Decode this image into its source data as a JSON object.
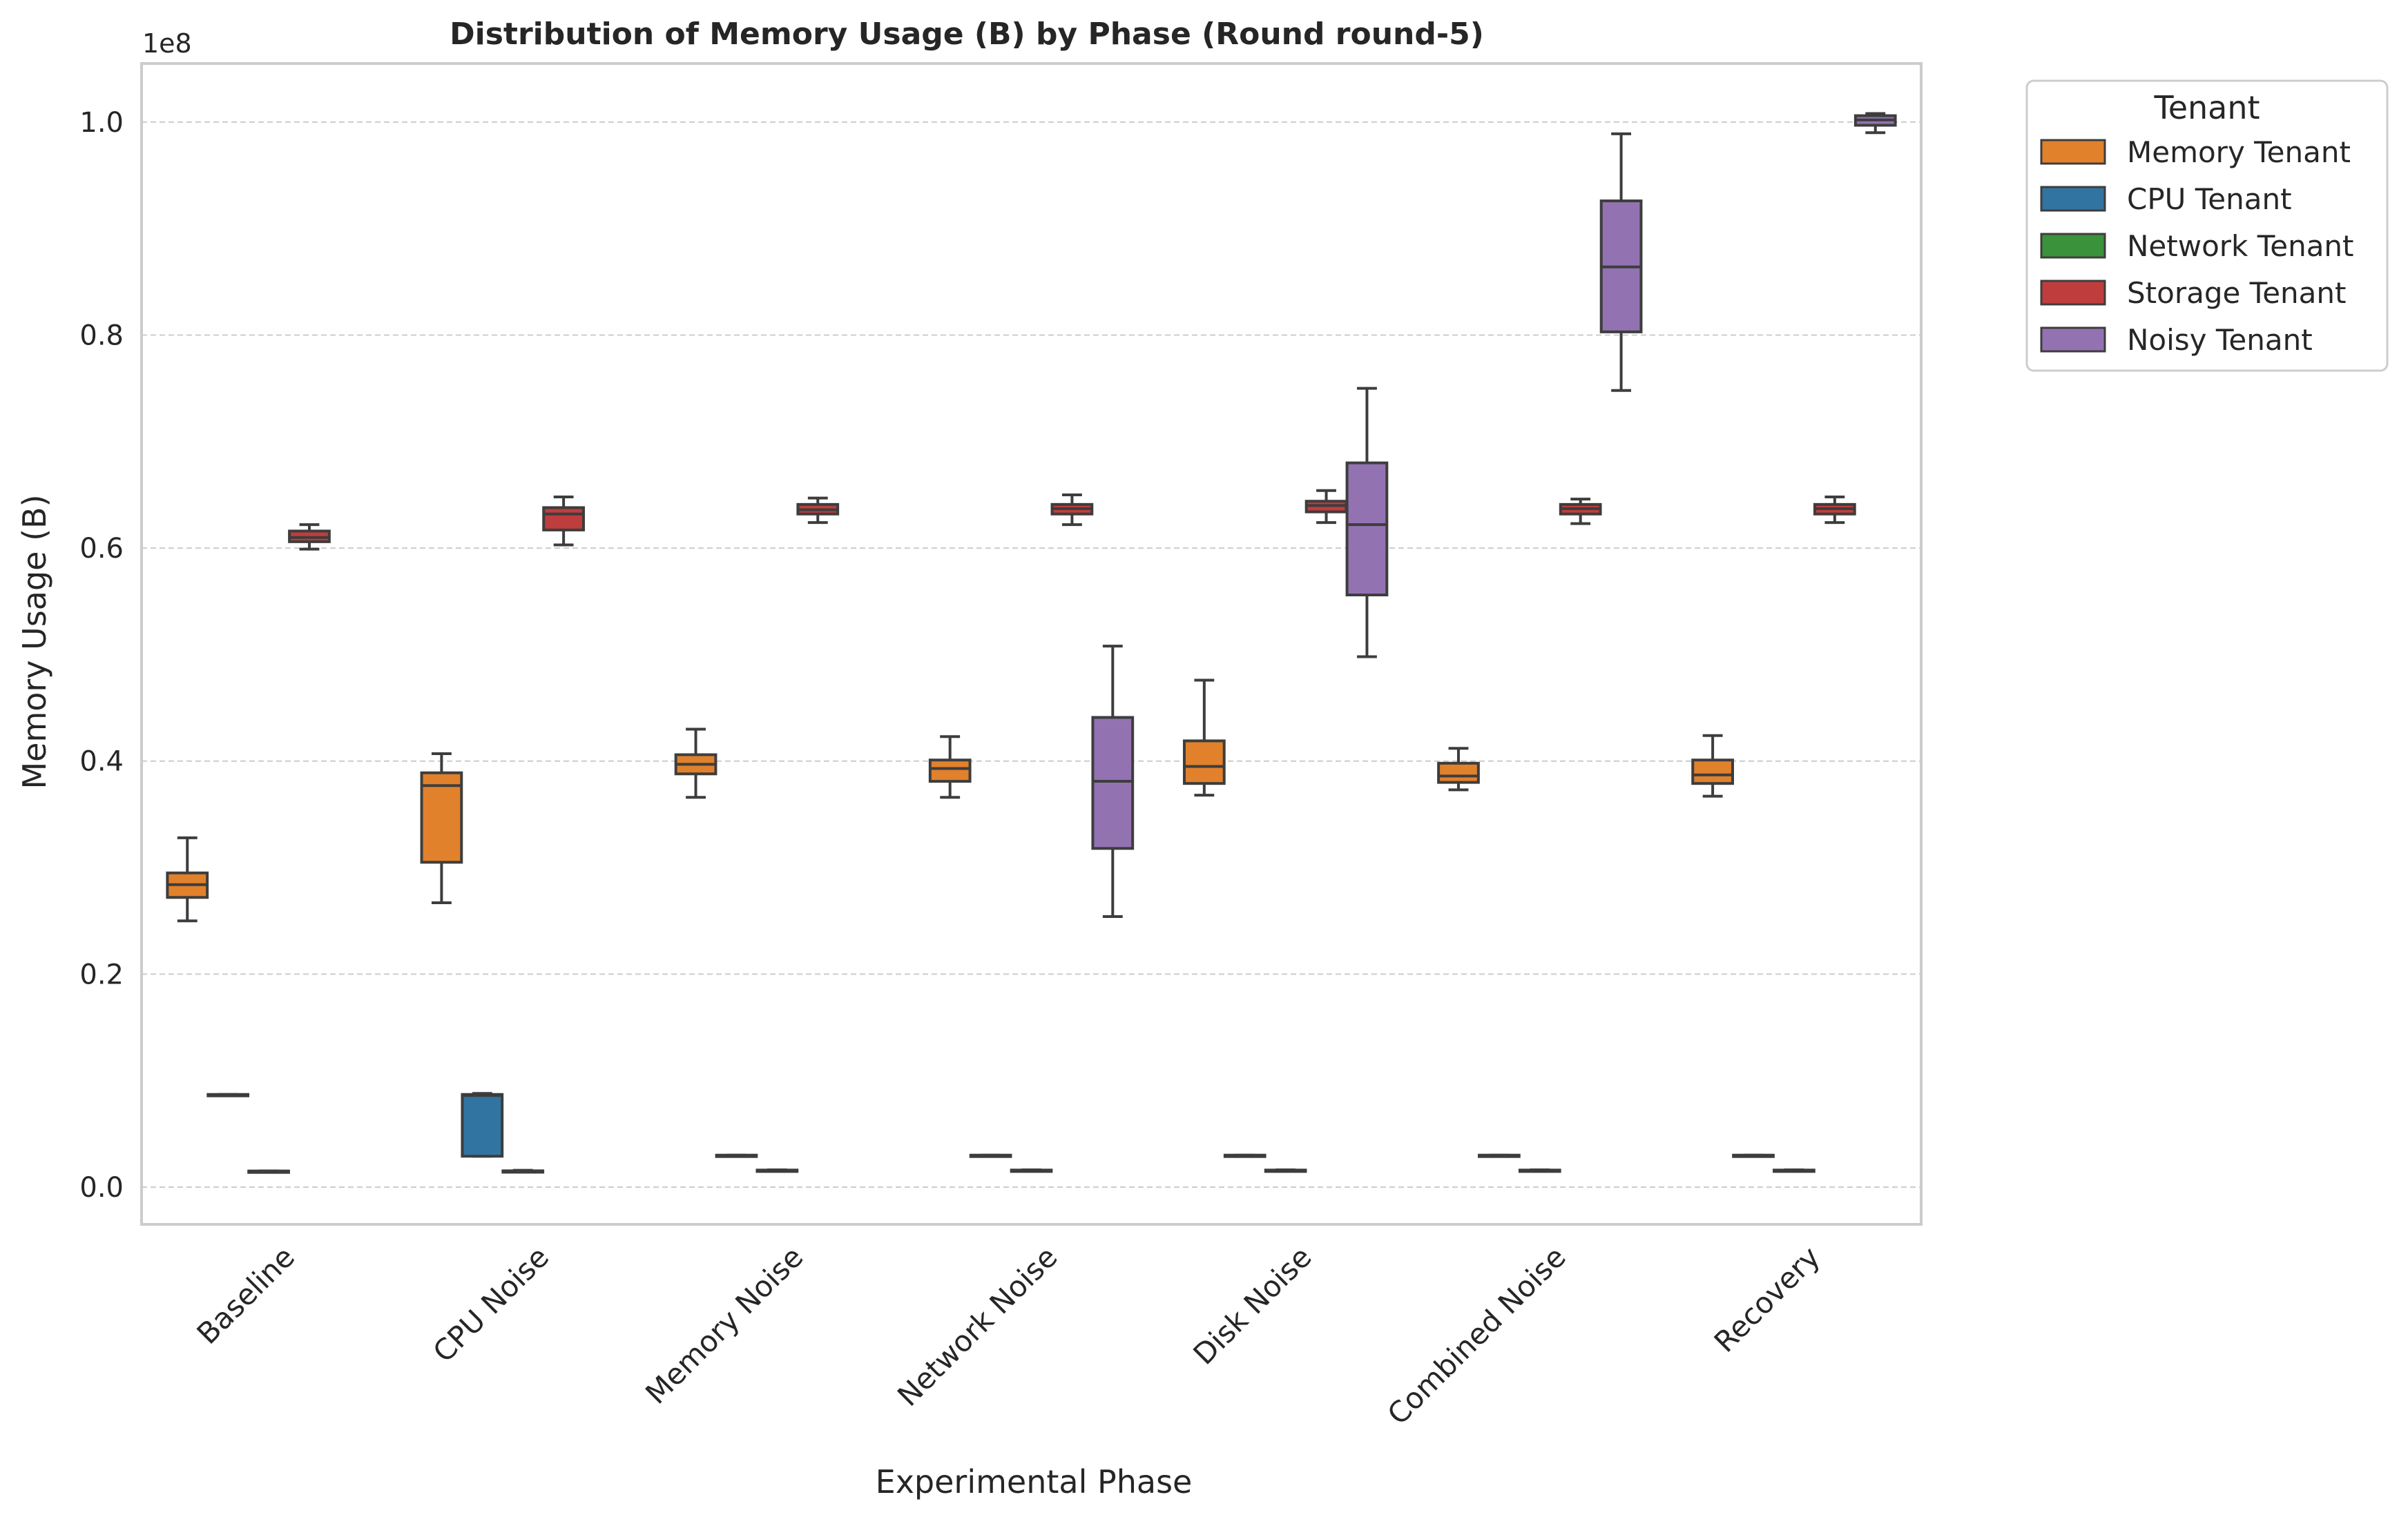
{
  "chart_data": {
    "type": "box",
    "title": "Distribution of Memory Usage (B) by Phase (Round round-5)",
    "xlabel": "Experimental Phase",
    "ylabel": "Memory Usage (B)",
    "y_multiplier_label": "1e8",
    "ylim": [
      -0.035,
      1.055
    ],
    "yticks": [
      0.0,
      0.2,
      0.4,
      0.6,
      0.8,
      1.0
    ],
    "ytick_labels": [
      "0.0",
      "0.2",
      "0.4",
      "0.6",
      "0.8",
      "1.0"
    ],
    "grid": "y",
    "legend_position": "outside-top-right",
    "legend_title": "Tenant",
    "categories": [
      "Baseline",
      "CPU Noise",
      "Memory Noise",
      "Network Noise",
      "Disk Noise",
      "Combined Noise",
      "Recovery"
    ],
    "series": [
      {
        "name": "Memory Tenant",
        "color": "#e1812c",
        "boxes": [
          {
            "min": 0.25,
            "q1": 0.272,
            "median": 0.284,
            "q3": 0.295,
            "max": 0.328
          },
          {
            "min": 0.267,
            "q1": 0.305,
            "median": 0.377,
            "q3": 0.389,
            "max": 0.407
          },
          {
            "min": 0.366,
            "q1": 0.388,
            "median": 0.397,
            "q3": 0.406,
            "max": 0.43
          },
          {
            "min": 0.366,
            "q1": 0.381,
            "median": 0.393,
            "q3": 0.401,
            "max": 0.423
          },
          {
            "min": 0.368,
            "q1": 0.379,
            "median": 0.395,
            "q3": 0.419,
            "max": 0.476
          },
          {
            "min": 0.373,
            "q1": 0.38,
            "median": 0.386,
            "q3": 0.398,
            "max": 0.412
          },
          {
            "min": 0.367,
            "q1": 0.379,
            "median": 0.387,
            "q3": 0.401,
            "max": 0.424
          }
        ]
      },
      {
        "name": "CPU Tenant",
        "color": "#3274a1",
        "boxes": [
          {
            "min": 0.086,
            "q1": 0.086,
            "median": 0.086,
            "q3": 0.087,
            "max": 0.087
          },
          {
            "min": 0.029,
            "q1": 0.029,
            "median": 0.086,
            "q3": 0.087,
            "max": 0.088
          },
          {
            "min": 0.029,
            "q1": 0.029,
            "median": 0.029,
            "q3": 0.03,
            "max": 0.03
          },
          {
            "min": 0.029,
            "q1": 0.029,
            "median": 0.029,
            "q3": 0.03,
            "max": 0.03
          },
          {
            "min": 0.029,
            "q1": 0.029,
            "median": 0.029,
            "q3": 0.03,
            "max": 0.03
          },
          {
            "min": 0.029,
            "q1": 0.029,
            "median": 0.029,
            "q3": 0.03,
            "max": 0.03
          },
          {
            "min": 0.029,
            "q1": 0.029,
            "median": 0.029,
            "q3": 0.03,
            "max": 0.03
          }
        ]
      },
      {
        "name": "Network Tenant",
        "color": "#3a923a",
        "boxes": [
          {
            "min": 0.0148,
            "q1": 0.0149,
            "median": 0.015,
            "q3": 0.0151,
            "max": 0.0152
          },
          {
            "min": 0.0145,
            "q1": 0.0148,
            "median": 0.015,
            "q3": 0.0153,
            "max": 0.0158
          },
          {
            "min": 0.0154,
            "q1": 0.0156,
            "median": 0.0158,
            "q3": 0.016,
            "max": 0.0162
          },
          {
            "min": 0.0154,
            "q1": 0.0156,
            "median": 0.0158,
            "q3": 0.016,
            "max": 0.0162
          },
          {
            "min": 0.0154,
            "q1": 0.0156,
            "median": 0.0158,
            "q3": 0.016,
            "max": 0.0162
          },
          {
            "min": 0.0154,
            "q1": 0.0156,
            "median": 0.0158,
            "q3": 0.016,
            "max": 0.0162
          },
          {
            "min": 0.0154,
            "q1": 0.0156,
            "median": 0.0158,
            "q3": 0.016,
            "max": 0.0162
          }
        ]
      },
      {
        "name": "Storage Tenant",
        "color": "#c03d3e",
        "boxes": [
          {
            "min": 0.599,
            "q1": 0.606,
            "median": 0.61,
            "q3": 0.616,
            "max": 0.622
          },
          {
            "min": 0.603,
            "q1": 0.617,
            "median": 0.632,
            "q3": 0.638,
            "max": 0.648
          },
          {
            "min": 0.624,
            "q1": 0.632,
            "median": 0.636,
            "q3": 0.641,
            "max": 0.647
          },
          {
            "min": 0.622,
            "q1": 0.632,
            "median": 0.637,
            "q3": 0.641,
            "max": 0.65
          },
          {
            "min": 0.624,
            "q1": 0.634,
            "median": 0.64,
            "q3": 0.644,
            "max": 0.654
          },
          {
            "min": 0.623,
            "q1": 0.632,
            "median": 0.637,
            "q3": 0.641,
            "max": 0.646
          },
          {
            "min": 0.624,
            "q1": 0.632,
            "median": 0.637,
            "q3": 0.641,
            "max": 0.648
          }
        ]
      },
      {
        "name": "Noisy Tenant",
        "color": "#9372b2",
        "boxes": [
          null,
          null,
          null,
          {
            "min": 0.254,
            "q1": 0.318,
            "median": 0.381,
            "q3": 0.441,
            "max": 0.508
          },
          {
            "min": 0.498,
            "q1": 0.556,
            "median": 0.622,
            "q3": 0.68,
            "max": 0.75
          },
          {
            "min": 0.748,
            "q1": 0.803,
            "median": 0.864,
            "q3": 0.926,
            "max": 0.989
          },
          {
            "min": 0.99,
            "q1": 0.997,
            "median": 1.002,
            "q3": 1.006,
            "max": 1.008
          }
        ]
      }
    ]
  }
}
